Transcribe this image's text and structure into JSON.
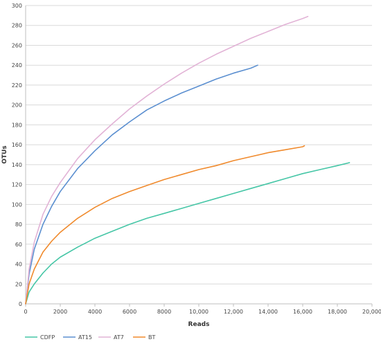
{
  "chart_data": {
    "type": "line",
    "xlabel": "Reads",
    "ylabel": "OTUs",
    "xlim": [
      0,
      20000
    ],
    "ylim": [
      0,
      300
    ],
    "x_ticks": [
      0,
      2000,
      4000,
      6000,
      8000,
      10000,
      12000,
      14000,
      16000,
      18000,
      20000
    ],
    "x_tick_labels": [
      "0",
      "2000",
      "4000",
      "6000",
      "8000",
      "10,000",
      "12,000",
      "14,000",
      "16,000",
      "18,000",
      "20,000"
    ],
    "y_ticks": [
      0,
      20,
      40,
      60,
      80,
      100,
      120,
      140,
      160,
      180,
      200,
      220,
      240,
      260,
      280,
      300
    ],
    "y_tick_labels": [
      "0",
      "20",
      "40",
      "60",
      "80",
      "100",
      "120",
      "140",
      "160",
      "180",
      "200",
      "220",
      "240",
      "260",
      "280",
      "300"
    ],
    "grid": "horizontal",
    "legend_position": "bottom-left",
    "series": [
      {
        "name": "CDFP",
        "color": "#45c6a6",
        "x": [
          0,
          200,
          500,
          1000,
          1500,
          2000,
          3000,
          4000,
          5000,
          6000,
          7000,
          8000,
          9000,
          10000,
          11000,
          12000,
          13000,
          14000,
          15000,
          16000,
          17000,
          18000,
          18700
        ],
        "y": [
          0,
          12,
          20,
          31,
          40,
          47,
          57,
          66,
          73,
          80,
          86,
          91,
          96,
          101,
          106,
          111,
          116,
          121,
          126,
          131,
          135,
          139,
          142
        ]
      },
      {
        "name": "AT15",
        "color": "#5b8fd0",
        "x": [
          0,
          200,
          500,
          1000,
          1500,
          2000,
          3000,
          4000,
          5000,
          6000,
          7000,
          8000,
          9000,
          10000,
          11000,
          12000,
          13000,
          13400
        ],
        "y": [
          0,
          30,
          55,
          80,
          98,
          113,
          136,
          154,
          170,
          183,
          195,
          204,
          212,
          219,
          226,
          232,
          237,
          240
        ]
      },
      {
        "name": "AT7",
        "color": "#e2b3d6",
        "x": [
          0,
          200,
          500,
          1000,
          1500,
          2000,
          3000,
          4000,
          5000,
          6000,
          7000,
          8000,
          9000,
          10000,
          11000,
          12000,
          13000,
          14000,
          15000,
          16000,
          16300
        ],
        "y": [
          0,
          35,
          62,
          90,
          108,
          122,
          146,
          165,
          181,
          196,
          209,
          221,
          232,
          242,
          251,
          259,
          267,
          274,
          281,
          287,
          289
        ]
      },
      {
        "name": "BT",
        "color": "#f08a2c",
        "x": [
          0,
          200,
          500,
          1000,
          1500,
          2000,
          3000,
          4000,
          5000,
          6000,
          7000,
          8000,
          9000,
          10000,
          11000,
          12000,
          13000,
          14000,
          15000,
          16000,
          16100
        ],
        "y": [
          0,
          20,
          35,
          52,
          63,
          72,
          86,
          97,
          106,
          113,
          119,
          125,
          130,
          135,
          139,
          144,
          148,
          152,
          155,
          158,
          159
        ]
      }
    ]
  }
}
